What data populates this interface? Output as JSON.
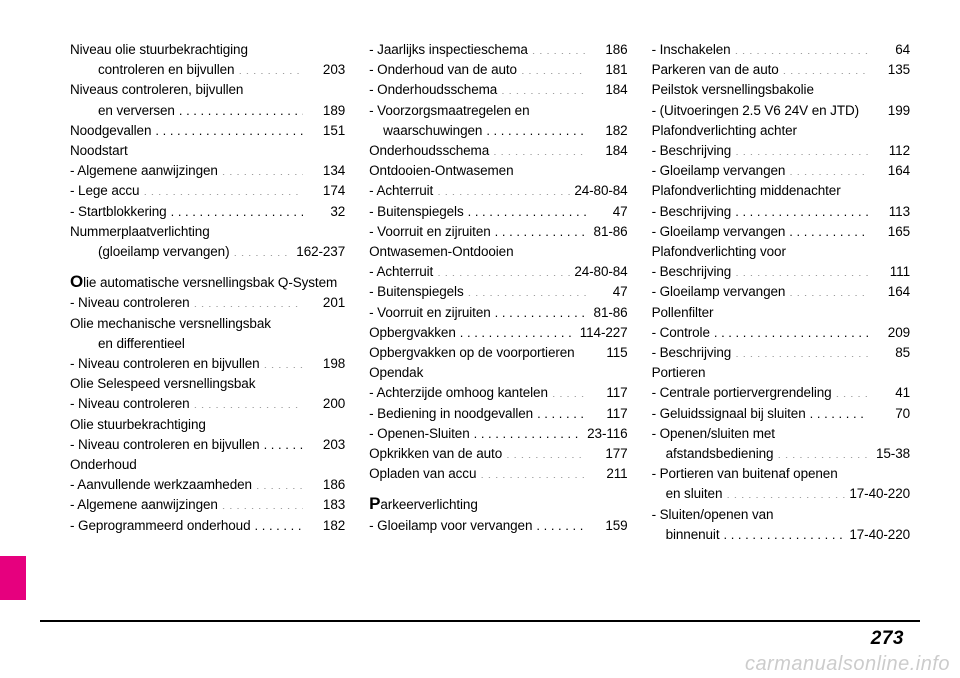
{
  "page_number": "273",
  "watermark": "carmanualsonline.info",
  "colors": {
    "text": "#000000",
    "page_bg": "#ffffff",
    "tab": "#e6007e",
    "watermark": "#cccccc",
    "rule": "#000000"
  },
  "columns": [
    [
      {
        "label": "Niveau olie stuurbekrachtiging",
        "page": "",
        "nodots": true
      },
      {
        "label": "controleren en bijvullen",
        "page": "203",
        "indent": 2
      },
      {
        "label": "Niveaus controleren, bijvullen",
        "page": "",
        "nodots": true
      },
      {
        "label": "en verversen",
        "page": "189",
        "indent": 2
      },
      {
        "label": "Noodgevallen",
        "page": "151"
      },
      {
        "label": "Noodstart",
        "page": "",
        "nodots": true
      },
      {
        "label": "- Algemene aanwijzingen",
        "page": "134"
      },
      {
        "label": "- Lege accu",
        "page": "174"
      },
      {
        "label": "- Startblokkering",
        "page": "32"
      },
      {
        "label": "Nummerplaatverlichting",
        "page": "",
        "nodots": true
      },
      {
        "label": "(gloeilamp vervangen)",
        "page": "162-237",
        "indent": 2,
        "dotsstyle": "short"
      },
      {
        "label": "",
        "page": "",
        "nodots": true,
        "spacer": true
      },
      {
        "label": "Olie automatische versnellingsbak Q-System",
        "page": "",
        "nodots": true,
        "bigcap": "O",
        "rest": "lie automatische versnellingsbak Q-System"
      },
      {
        "label": "- Niveau controleren",
        "page": "201"
      },
      {
        "label": "Olie mechanische versnellingsbak",
        "page": "",
        "nodots": true
      },
      {
        "label": "en differentieel",
        "page": "",
        "indent": 2,
        "nodots": true
      },
      {
        "label": "- Niveau controleren en bijvullen",
        "page": "198",
        "dotsstyle": "short"
      },
      {
        "label": "Olie Selespeed versnellingsbak",
        "page": "",
        "nodots": true
      },
      {
        "label": "- Niveau controleren",
        "page": "200"
      },
      {
        "label": "Olie stuurbekrachtiging",
        "page": "",
        "nodots": true
      },
      {
        "label": "- Niveau controleren en bijvullen",
        "page": "203",
        "dotsstyle": "short"
      },
      {
        "label": "Onderhoud",
        "page": "",
        "nodots": true
      },
      {
        "label": "- Aanvullende werkzaamheden",
        "page": "186",
        "dotsstyle": "short"
      },
      {
        "label": "- Algemene aanwijzingen",
        "page": "183"
      },
      {
        "label": "- Geprogrammeerd onderhoud",
        "page": "182",
        "dotsstyle": "short"
      }
    ],
    [
      {
        "label": "- Jaarlijks inspectieschema",
        "page": "186"
      },
      {
        "label": "- Onderhoud van de auto",
        "page": "181"
      },
      {
        "label": "- Onderhoudsschema",
        "page": "184"
      },
      {
        "label": "- Voorzorgsmaatregelen en",
        "page": "",
        "nodots": true
      },
      {
        "label": "waarschuwingen",
        "page": "182",
        "indent": 1
      },
      {
        "label": "Onderhoudsschema",
        "page": "184"
      },
      {
        "label": "Ontdooien-Ontwasemen",
        "page": "",
        "nodots": true
      },
      {
        "label": "- Achterruit",
        "page": "24-80-84",
        "dotsstyle": "long"
      },
      {
        "label": "- Buitenspiegels",
        "page": "47"
      },
      {
        "label": "- Voorruit en zijruiten",
        "page": "81-86"
      },
      {
        "label": "Ontwasemen-Ontdooien",
        "page": "",
        "nodots": true
      },
      {
        "label": "- Achterruit",
        "page": "24-80-84",
        "dotsstyle": "long"
      },
      {
        "label": "- Buitenspiegels",
        "page": "47"
      },
      {
        "label": "- Voorruit en zijruiten",
        "page": "81-86"
      },
      {
        "label": "Opbergvakken",
        "page": "114-227",
        "dotsstyle": "long"
      },
      {
        "label": "Opbergvakken op de voorportieren",
        "page": "115",
        "nodots": true
      },
      {
        "label": "Opendak",
        "page": "",
        "nodots": true
      },
      {
        "label": "- Achterzijde omhoog kantelen",
        "page": "117",
        "dotsstyle": "short"
      },
      {
        "label": "- Bediening in noodgevallen",
        "page": "117"
      },
      {
        "label": "- Openen-Sluiten",
        "page": "23-116"
      },
      {
        "label": "Opkrikken van de auto",
        "page": "177"
      },
      {
        "label": "Opladen van accu",
        "page": "211"
      },
      {
        "label": "",
        "page": "",
        "nodots": true,
        "spacer": true
      },
      {
        "label": "Parkeerverlichting",
        "page": "",
        "nodots": true,
        "bigcap": "P",
        "rest": "arkeerverlichting"
      },
      {
        "label": "- Gloeilamp voor vervangen",
        "page": "159"
      }
    ],
    [
      {
        "label": "- Inschakelen",
        "page": "64"
      },
      {
        "label": "Parkeren van de auto",
        "page": "135"
      },
      {
        "label": "Peilstok versnellingsbakolie",
        "page": "",
        "nodots": true
      },
      {
        "label": "- (Uitvoeringen 2.5 V6 24V en JTD)",
        "page": "199",
        "nodots": true
      },
      {
        "label": "Plafondverlichting achter",
        "page": "",
        "nodots": true
      },
      {
        "label": "- Beschrijving",
        "page": "112"
      },
      {
        "label": "- Gloeilamp vervangen",
        "page": "164"
      },
      {
        "label": "Plafondverlichting middenachter",
        "page": "",
        "nodots": true
      },
      {
        "label": "- Beschrijving",
        "page": "113"
      },
      {
        "label": "- Gloeilamp vervangen",
        "page": "165"
      },
      {
        "label": "Plafondverlichting voor",
        "page": "",
        "nodots": true
      },
      {
        "label": "- Beschrijving",
        "page": "111"
      },
      {
        "label": "- Gloeilamp vervangen",
        "page": "164"
      },
      {
        "label": "Pollenfilter",
        "page": "",
        "nodots": true
      },
      {
        "label": "- Controle",
        "page": "209"
      },
      {
        "label": "- Beschrijving",
        "page": "85"
      },
      {
        "label": "Portieren",
        "page": "",
        "nodots": true
      },
      {
        "label": "- Centrale portiervergrendeling",
        "page": "41",
        "dotsstyle": "short"
      },
      {
        "label": "- Geluidssignaal bij sluiten",
        "page": "70"
      },
      {
        "label": "- Openen/sluiten met",
        "page": "",
        "nodots": true
      },
      {
        "label": "afstandsbediening",
        "page": "15-38",
        "indent": 1
      },
      {
        "label": "- Portieren van buitenaf openen",
        "page": "",
        "nodots": true
      },
      {
        "label": "en sluiten",
        "page": "17-40-220",
        "indent": 1
      },
      {
        "label": "- Sluiten/openen van",
        "page": "",
        "nodots": true
      },
      {
        "label": "binnenuit",
        "page": "17-40-220",
        "indent": 1
      }
    ]
  ]
}
